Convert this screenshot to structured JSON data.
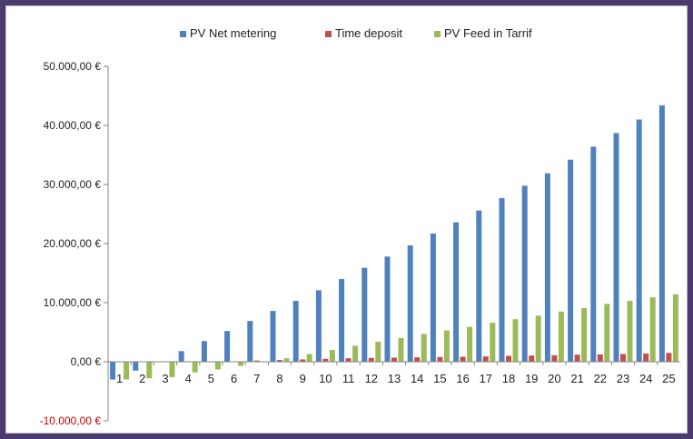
{
  "chart_data": {
    "type": "bar",
    "categories": [
      "1",
      "2",
      "3",
      "4",
      "5",
      "6",
      "7",
      "8",
      "9",
      "10",
      "11",
      "12",
      "13",
      "14",
      "15",
      "16",
      "17",
      "18",
      "19",
      "20",
      "21",
      "22",
      "23",
      "24",
      "25"
    ],
    "series": [
      {
        "name": "PV Net metering",
        "color": "#4f81bd",
        "values": [
          -3000,
          -1500,
          0,
          1800,
          3500,
          5200,
          6900,
          8600,
          10300,
          12100,
          14000,
          15900,
          17800,
          19700,
          21700,
          23600,
          25600,
          27700,
          29800,
          31900,
          34200,
          36400,
          38700,
          41000,
          43400
        ]
      },
      {
        "name": "Time deposit",
        "color": "#c0504d",
        "values": [
          0,
          0,
          0,
          0,
          0,
          0,
          200,
          300,
          400,
          500,
          600,
          650,
          700,
          750,
          800,
          850,
          900,
          1000,
          1050,
          1100,
          1200,
          1250,
          1300,
          1400,
          1500
        ]
      },
      {
        "name": "PV Feed in Tarrif",
        "color": "#9bbb59",
        "values": [
          -3000,
          -2800,
          -2600,
          -1800,
          -1300,
          -700,
          0,
          600,
          1300,
          2000,
          2700,
          3400,
          4000,
          4700,
          5300,
          5900,
          6600,
          7200,
          7800,
          8500,
          9100,
          9800,
          10300,
          10900,
          11400
        ]
      }
    ],
    "yticks": [
      {
        "value": 50000,
        "label": "50.000,00 €"
      },
      {
        "value": 40000,
        "label": "40.000,00 €"
      },
      {
        "value": 30000,
        "label": "30.000,00 €"
      },
      {
        "value": 20000,
        "label": "20.000,00 €"
      },
      {
        "value": 10000,
        "label": "10.000,00 €"
      },
      {
        "value": 0,
        "label": "0,00 €"
      },
      {
        "value": -10000,
        "label": "-10.000,00 €"
      }
    ],
    "ylim": [
      -10000,
      50000
    ],
    "legend_position": "top",
    "grid": false,
    "negative_label_color": "#c00000",
    "label_color": "#222222"
  }
}
